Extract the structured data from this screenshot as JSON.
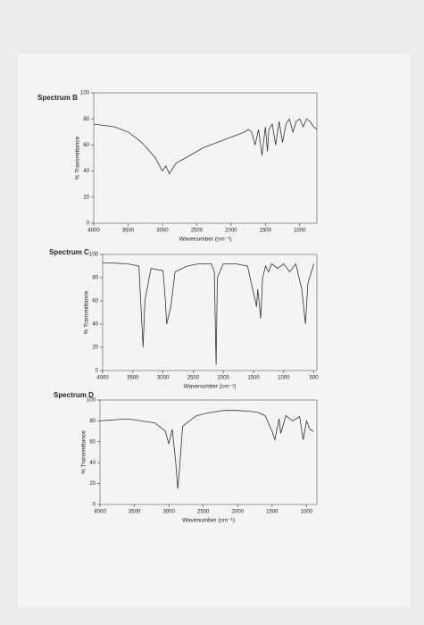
{
  "chart_data": [
    {
      "type": "line",
      "title": "Spectrum B",
      "x_label": "Wavenumber (cm⁻¹)",
      "y_label": "% Transmittance",
      "x": [
        4000,
        3700,
        3500,
        3300,
        3100,
        3000,
        2950,
        2900,
        2800,
        2600,
        2400,
        2200,
        2000,
        1900,
        1800,
        1750,
        1700,
        1650,
        1600,
        1550,
        1500,
        1470,
        1450,
        1400,
        1350,
        1300,
        1250,
        1200,
        1150,
        1100,
        1050,
        1000,
        950,
        900,
        850,
        800,
        750
      ],
      "series": [
        {
          "name": "Spectrum B",
          "color": "#333333",
          "values": [
            76,
            74,
            70,
            62,
            50,
            40,
            44,
            38,
            46,
            52,
            58,
            62,
            66,
            68,
            70,
            72,
            70,
            60,
            72,
            52,
            74,
            55,
            72,
            76,
            60,
            78,
            62,
            76,
            80,
            70,
            78,
            80,
            74,
            80,
            78,
            74,
            72
          ]
        }
      ],
      "xlim": [
        4000,
        750
      ],
      "xticks": [
        4000,
        3500,
        3000,
        2500,
        2000,
        1500,
        1000
      ],
      "ylim": [
        0,
        100
      ],
      "yticks": [
        0,
        20,
        40,
        60,
        80,
        100
      ]
    },
    {
      "type": "line",
      "title": "Spectrum C",
      "x_label": "Wavenumber (cm⁻¹)",
      "y_label": "% Transmittance",
      "x": [
        4000,
        3600,
        3400,
        3330,
        3300,
        3200,
        3000,
        2960,
        2940,
        2870,
        2800,
        2600,
        2400,
        2200,
        2150,
        2120,
        2100,
        2000,
        1800,
        1600,
        1470,
        1450,
        1430,
        1380,
        1350,
        1300,
        1250,
        1200,
        1100,
        1000,
        900,
        800,
        700,
        640,
        600,
        500
      ],
      "series": [
        {
          "name": "Spectrum C",
          "color": "#333333",
          "values": [
            93,
            92,
            90,
            20,
            60,
            88,
            86,
            60,
            40,
            55,
            85,
            90,
            92,
            92,
            85,
            5,
            80,
            92,
            92,
            90,
            60,
            55,
            70,
            45,
            80,
            90,
            85,
            92,
            88,
            92,
            85,
            92,
            70,
            40,
            75,
            92
          ]
        }
      ],
      "xlim": [
        4000,
        450
      ],
      "xticks": [
        4000,
        3500,
        3000,
        2500,
        2000,
        1500,
        1000,
        500
      ],
      "ylim": [
        0,
        100
      ],
      "yticks": [
        0,
        20,
        40,
        60,
        80,
        100
      ]
    },
    {
      "type": "line",
      "title": "Spectrum D",
      "x_label": "Wavenumber (cm⁻¹)",
      "y_label": "% Transmittance",
      "x": [
        4000,
        3600,
        3400,
        3200,
        3050,
        3000,
        2950,
        2900,
        2870,
        2850,
        2800,
        2600,
        2400,
        2200,
        2000,
        1800,
        1700,
        1600,
        1500,
        1460,
        1400,
        1375,
        1300,
        1200,
        1100,
        1050,
        1000,
        950,
        900
      ],
      "series": [
        {
          "name": "Spectrum D",
          "color": "#333333",
          "values": [
            80,
            82,
            80,
            78,
            70,
            58,
            72,
            40,
            15,
            30,
            75,
            85,
            88,
            90,
            90,
            89,
            88,
            85,
            70,
            62,
            82,
            68,
            85,
            80,
            84,
            62,
            80,
            72,
            70
          ]
        }
      ],
      "xlim": [
        4000,
        850
      ],
      "xticks": [
        4000,
        3500,
        3000,
        2500,
        2000,
        1500,
        1000
      ],
      "ylim": [
        0,
        100
      ],
      "yticks": [
        0,
        20,
        40,
        60,
        80,
        100
      ]
    }
  ]
}
